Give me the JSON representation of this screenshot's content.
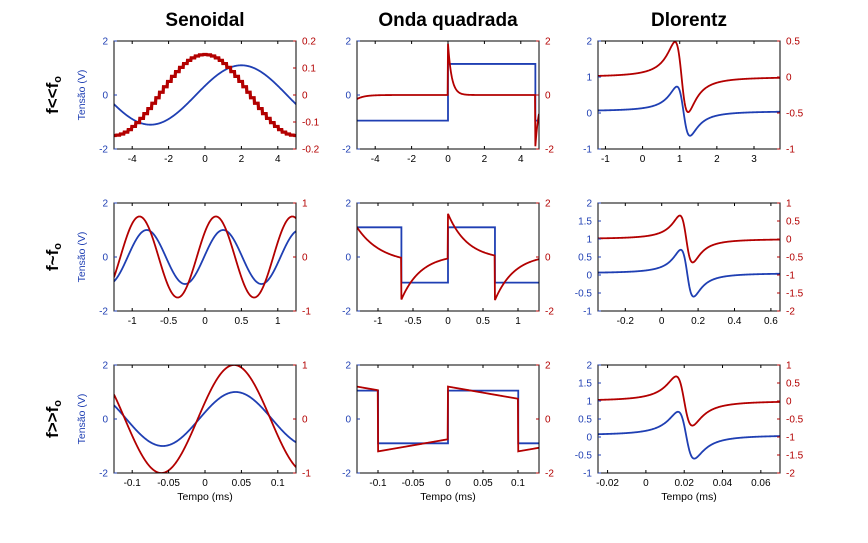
{
  "figure": {
    "column_titles": [
      "Senoidal",
      "Onda quadrada",
      "Dlorentz"
    ],
    "row_labels": [
      {
        "main": "f<<f",
        "sub": "o"
      },
      {
        "main": "f~f",
        "sub": "o"
      },
      {
        "main": "f>>f",
        "sub": "o"
      }
    ]
  },
  "colors": {
    "blue": "#1f3fb3",
    "red": "#b30000",
    "axis_left": "#1f3fb3",
    "axis_right": "#b30000"
  },
  "chart_data": [
    {
      "type": "line",
      "row": 0,
      "col": 0,
      "xlim": [
        -5,
        5
      ],
      "xticks": [
        -4,
        -2,
        0,
        2,
        4
      ],
      "ylim": [
        -2,
        2
      ],
      "yticks": [
        -2,
        0,
        2
      ],
      "y2lim": [
        -0.2,
        0.2
      ],
      "y2ticks": [
        -0.2,
        -0.1,
        0,
        0.1,
        0.2
      ],
      "ylabel": "Tensão (V)",
      "xlabel": "",
      "series": [
        {
          "color": "blue",
          "axis": "left",
          "fn": "sin",
          "amp": 1.1,
          "phase_center": 2.0,
          "period": 10
        },
        {
          "color": "red",
          "axis": "right",
          "fn": "stepcos",
          "amp": 0.15,
          "center": 0.0,
          "period": 10,
          "steps": 46
        }
      ]
    },
    {
      "type": "line",
      "row": 0,
      "col": 1,
      "xlim": [
        -5,
        5
      ],
      "xticks": [
        -4,
        -2,
        0,
        2,
        4
      ],
      "ylim": [
        -2,
        2
      ],
      "yticks": [
        -2,
        0,
        2
      ],
      "y2lim": [
        -2,
        2
      ],
      "y2ticks": [
        -2,
        0,
        2
      ],
      "xlabel": "",
      "series": [
        {
          "color": "blue",
          "axis": "left",
          "fn": "square",
          "lo": -0.95,
          "hi": 1.15,
          "edges": [
            0.0,
            4.8
          ]
        },
        {
          "color": "red",
          "axis": "right",
          "fn": "spike",
          "tau": 0.2,
          "edges": [
            0.0,
            4.8
          ],
          "peak": 1.9
        }
      ]
    },
    {
      "type": "line",
      "row": 0,
      "col": 2,
      "xlim": [
        -1.2,
        3.7
      ],
      "xticks": [
        -1,
        0,
        1,
        2,
        3
      ],
      "ylim": [
        -1,
        2
      ],
      "yticks": [
        -1,
        0,
        1,
        2
      ],
      "y2lim": [
        -1,
        0.5
      ],
      "y2ticks": [
        -1,
        -0.5,
        0,
        0.5
      ],
      "xlabel": "",
      "series": [
        {
          "color": "blue",
          "axis": "left",
          "fn": "dlor",
          "x0": 1.1,
          "w": 0.25,
          "amp": 1.05,
          "base": 0.05
        },
        {
          "color": "red",
          "axis": "right",
          "fn": "dlor",
          "x0": 1.05,
          "w": 0.25,
          "amp": 0.75,
          "base": 0.0
        }
      ]
    },
    {
      "type": "line",
      "row": 1,
      "col": 0,
      "xlim": [
        -1.25,
        1.25
      ],
      "xticks": [
        -1,
        -0.5,
        0,
        0.5,
        1
      ],
      "ylim": [
        -2,
        2
      ],
      "yticks": [
        -2,
        0,
        2
      ],
      "y2lim": [
        -1,
        1
      ],
      "y2ticks": [
        -1,
        0,
        1
      ],
      "ylabel": "Tensão (V)",
      "xlabel": "",
      "series": [
        {
          "color": "blue",
          "axis": "left",
          "fn": "sin",
          "amp": 1.0,
          "phase_center": 0.25,
          "period": 1.05
        },
        {
          "color": "red",
          "axis": "right",
          "fn": "sin",
          "amp": 0.75,
          "phase_center": 0.15,
          "period": 1.05
        }
      ]
    },
    {
      "type": "line",
      "row": 1,
      "col": 1,
      "xlim": [
        -1.3,
        1.3
      ],
      "xticks": [
        -1,
        -0.5,
        0,
        0.5,
        1
      ],
      "ylim": [
        -2,
        2
      ],
      "yticks": [
        -2,
        0,
        2
      ],
      "y2lim": [
        -2,
        2
      ],
      "y2ticks": [
        -2,
        0,
        2
      ],
      "xlabel": "",
      "series": [
        {
          "color": "blue",
          "axis": "left",
          "fn": "square",
          "lo": -0.95,
          "hi": 1.1,
          "edges": [
            -0.67,
            0.0,
            0.67
          ],
          "start": "hi"
        },
        {
          "color": "red",
          "axis": "right",
          "fn": "relax",
          "tau": 0.28,
          "edges": [
            -0.67,
            0.0,
            0.67
          ],
          "peak": 1.7,
          "start": "hi"
        }
      ]
    },
    {
      "type": "line",
      "row": 1,
      "col": 2,
      "xlim": [
        -0.35,
        0.65
      ],
      "xticks": [
        -0.2,
        0,
        0.2,
        0.4,
        0.6
      ],
      "ylim": [
        -1,
        2
      ],
      "yticks": [
        -1,
        -0.5,
        0,
        0.5,
        1,
        1.5,
        2
      ],
      "y2lim": [
        -2,
        1
      ],
      "y2ticks": [
        -2,
        -1.5,
        -1,
        -0.5,
        0,
        0.5,
        1
      ],
      "xlabel": "",
      "series": [
        {
          "color": "blue",
          "axis": "left",
          "fn": "dlor",
          "x0": 0.14,
          "w": 0.05,
          "amp": 1.0,
          "base": 0.05
        },
        {
          "color": "red",
          "axis": "right",
          "fn": "dlor",
          "x0": 0.135,
          "w": 0.05,
          "amp": 1.0,
          "base": 0.0
        }
      ]
    },
    {
      "type": "line",
      "row": 2,
      "col": 0,
      "xlim": [
        -0.125,
        0.125
      ],
      "xticks": [
        -0.1,
        -0.05,
        0,
        0.05,
        0.1
      ],
      "ylim": [
        -2,
        2
      ],
      "yticks": [
        -2,
        0,
        2
      ],
      "y2lim": [
        -1,
        1
      ],
      "y2ticks": [
        -1,
        0,
        1
      ],
      "ylabel": "Tensão (V)",
      "xlabel": "Tempo (ms)",
      "series": [
        {
          "color": "blue",
          "axis": "left",
          "fn": "sin",
          "amp": 1.0,
          "phase_center": 0.042,
          "period": 0.2
        },
        {
          "color": "red",
          "axis": "right",
          "fn": "sin",
          "amp": 1.0,
          "phase_center": 0.04,
          "period": 0.2
        }
      ]
    },
    {
      "type": "line",
      "row": 2,
      "col": 1,
      "xlim": [
        -0.13,
        0.13
      ],
      "xticks": [
        -0.1,
        -0.05,
        0,
        0.05,
        0.1
      ],
      "ylim": [
        -2,
        2
      ],
      "yticks": [
        -2,
        0,
        2
      ],
      "y2lim": [
        -2,
        2
      ],
      "y2ticks": [
        -2,
        0,
        2
      ],
      "xlabel": "Tempo (ms)",
      "series": [
        {
          "color": "blue",
          "axis": "left",
          "fn": "square",
          "lo": -0.9,
          "hi": 1.05,
          "edges": [
            -0.1,
            0.0,
            0.1
          ],
          "start": "hi"
        },
        {
          "color": "red",
          "axis": "right",
          "fn": "ramp",
          "edges": [
            -0.1,
            0.0,
            0.1
          ],
          "hi_start": 1.2,
          "hi_end": 0.75,
          "lo_start": -1.2,
          "lo_end": -0.75,
          "start": "hi"
        }
      ]
    },
    {
      "type": "line",
      "row": 2,
      "col": 2,
      "xlim": [
        -0.025,
        0.07
      ],
      "xticks": [
        -0.02,
        0,
        0.02,
        0.04,
        0.06
      ],
      "ylim": [
        -1,
        2
      ],
      "yticks": [
        -1,
        -0.5,
        0,
        0.5,
        1,
        1.5,
        2
      ],
      "y2lim": [
        -2,
        1
      ],
      "y2ticks": [
        -2,
        -1.5,
        -1,
        -0.5,
        0,
        0.5,
        1
      ],
      "xlabel": "Tempo (ms)",
      "series": [
        {
          "color": "blue",
          "axis": "left",
          "fn": "dlor",
          "x0": 0.021,
          "w": 0.006,
          "amp": 1.0,
          "base": 0.05
        },
        {
          "color": "red",
          "axis": "right",
          "fn": "dlor",
          "x0": 0.02,
          "w": 0.006,
          "amp": 1.05,
          "base": 0.0
        }
      ]
    }
  ]
}
